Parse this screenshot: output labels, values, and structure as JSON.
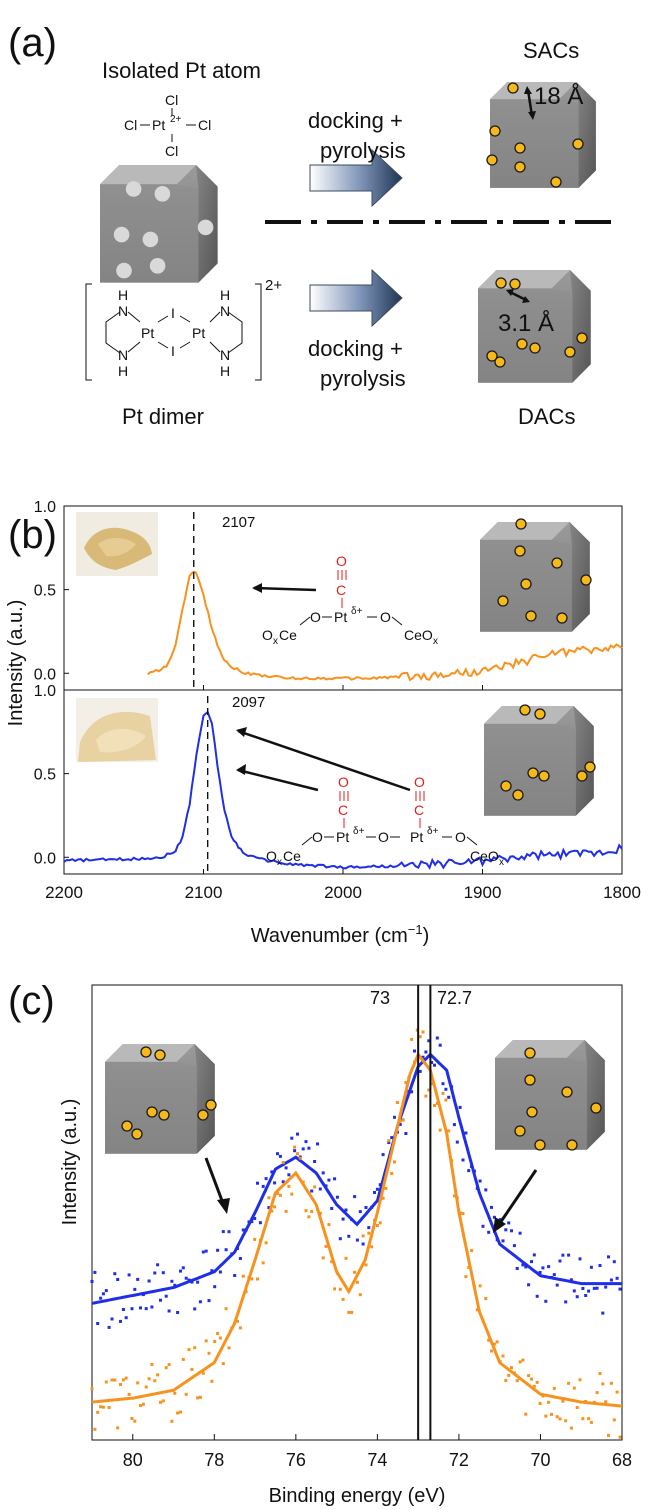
{
  "panel_a": {
    "label": "(a)",
    "sac_title": "Isolated Pt atom",
    "sac_complex": {
      "cl": "Cl",
      "pt": "Pt",
      "charge": "2+"
    },
    "dimer_title": "Pt dimer",
    "dimer_complex": {
      "pt": "Pt",
      "i": "I",
      "n": "N",
      "h": "H",
      "charge": "2+"
    },
    "arrow_text_1": "docking +",
    "arrow_text_2": "pyrolysis",
    "sacs_label": "SACs",
    "dacs_label": "DACs",
    "sac_distance": "18 Å",
    "dac_distance": "3.1 Å"
  },
  "panel_b": {
    "label": "(b)",
    "y_label": "Intensity (a.u.)",
    "x_label_main": "Wavenumber (cm",
    "x_label_sup": "−1",
    "x_label_end": ")",
    "peak_top": "2107",
    "peak_bottom": "2097",
    "structure": {
      "o": "O",
      "c": "C",
      "pt": "Pt",
      "delta": "δ+",
      "oxce": "O",
      "ox_sub": "x",
      "ce": "Ce",
      "ceox": "CeO",
      "dash": "—"
    }
  },
  "panel_c": {
    "label": "(c)",
    "y_label": "Intensity (a.u.)",
    "x_label": "Binding energy (eV)",
    "line_label_1": "73",
    "line_label_2": "72.7"
  },
  "colors": {
    "sac": "#f7921e",
    "dac": "#1f2ee8",
    "cube": "#8e8e8e",
    "dot": "#f6b91a"
  },
  "chart_data": [
    {
      "type": "line",
      "title": "",
      "xlabel": "Wavenumber (cm−1)",
      "ylabel": "Intensity (a.u.)",
      "xlim": [
        2200,
        1800
      ],
      "ylim": [
        -0.1,
        1.0
      ],
      "xticks": [
        2200,
        2100,
        2000,
        1900,
        1800
      ],
      "yticks": [
        0.0,
        0.5,
        1.0
      ],
      "series": [
        {
          "x": [
            2140,
            2130,
            2125,
            2120,
            2115,
            2110,
            2107,
            2104,
            2100,
            2095,
            2090,
            2085,
            2080,
            2070,
            2060,
            2040,
            2020,
            2000,
            1980,
            1960,
            1940,
            1920,
            1900,
            1890,
            1880,
            1870,
            1860,
            1850,
            1840,
            1830,
            1820,
            1810,
            1800
          ],
          "values": [
            0.0,
            0.02,
            0.06,
            0.17,
            0.38,
            0.58,
            0.61,
            0.58,
            0.47,
            0.3,
            0.17,
            0.08,
            0.04,
            0.0,
            -0.01,
            -0.03,
            -0.03,
            -0.03,
            -0.03,
            -0.02,
            -0.02,
            0.0,
            0.01,
            0.03,
            0.05,
            0.07,
            0.1,
            0.12,
            0.13,
            0.14,
            0.14,
            0.15,
            0.15
          ]
        }
      ]
    },
    {
      "type": "line",
      "title": "",
      "xlabel": "Wavenumber (cm−1)",
      "ylabel": "Intensity (a.u.)",
      "xlim": [
        2200,
        1800
      ],
      "ylim": [
        -0.1,
        1.0
      ],
      "xticks": [
        2200,
        2100,
        2000,
        1900,
        1800
      ],
      "yticks": [
        0.0,
        0.5,
        1.0
      ],
      "series": [
        {
          "x": [
            2200,
            2150,
            2130,
            2120,
            2115,
            2110,
            2105,
            2100,
            2097,
            2094,
            2090,
            2085,
            2080,
            2075,
            2070,
            2060,
            2040,
            2000,
            1950,
            1900,
            1860,
            1820,
            1800
          ],
          "values": [
            -0.02,
            -0.01,
            0.0,
            0.04,
            0.12,
            0.32,
            0.62,
            0.84,
            0.87,
            0.8,
            0.55,
            0.28,
            0.13,
            0.06,
            0.02,
            -0.01,
            -0.04,
            -0.06,
            -0.05,
            -0.02,
            0.01,
            0.03,
            0.05
          ]
        }
      ]
    },
    {
      "type": "scatter",
      "title": "",
      "xlabel": "Binding energy (eV)",
      "ylabel": "Intensity (a.u.)",
      "xlim": [
        81,
        68
      ],
      "xticks": [
        80,
        78,
        76,
        74,
        72,
        70,
        68
      ],
      "series": [
        {
          "color": "#1f2ee8",
          "x": [
            81,
            80,
            79,
            78,
            77.5,
            77,
            76.5,
            76,
            75.5,
            75,
            74.5,
            74,
            73.5,
            73,
            72.7,
            72.3,
            72,
            71.5,
            71,
            70,
            69,
            68
          ],
          "values": [
            0.27,
            0.29,
            0.31,
            0.35,
            0.4,
            0.5,
            0.61,
            0.64,
            0.6,
            0.52,
            0.47,
            0.53,
            0.72,
            0.87,
            0.9,
            0.86,
            0.74,
            0.55,
            0.42,
            0.34,
            0.32,
            0.32
          ]
        },
        {
          "color": "#f7921e",
          "x": [
            81,
            80,
            79,
            78,
            77.5,
            77,
            76.5,
            76,
            75.5,
            75,
            74.7,
            74.3,
            74,
            73.5,
            73.2,
            73,
            72.7,
            72.3,
            72,
            71.5,
            71,
            70,
            69,
            68
          ],
          "values": [
            0.02,
            0.03,
            0.05,
            0.12,
            0.22,
            0.38,
            0.55,
            0.6,
            0.52,
            0.35,
            0.3,
            0.38,
            0.5,
            0.72,
            0.85,
            0.9,
            0.86,
            0.7,
            0.5,
            0.25,
            0.12,
            0.04,
            0.02,
            0.01
          ]
        }
      ]
    }
  ]
}
